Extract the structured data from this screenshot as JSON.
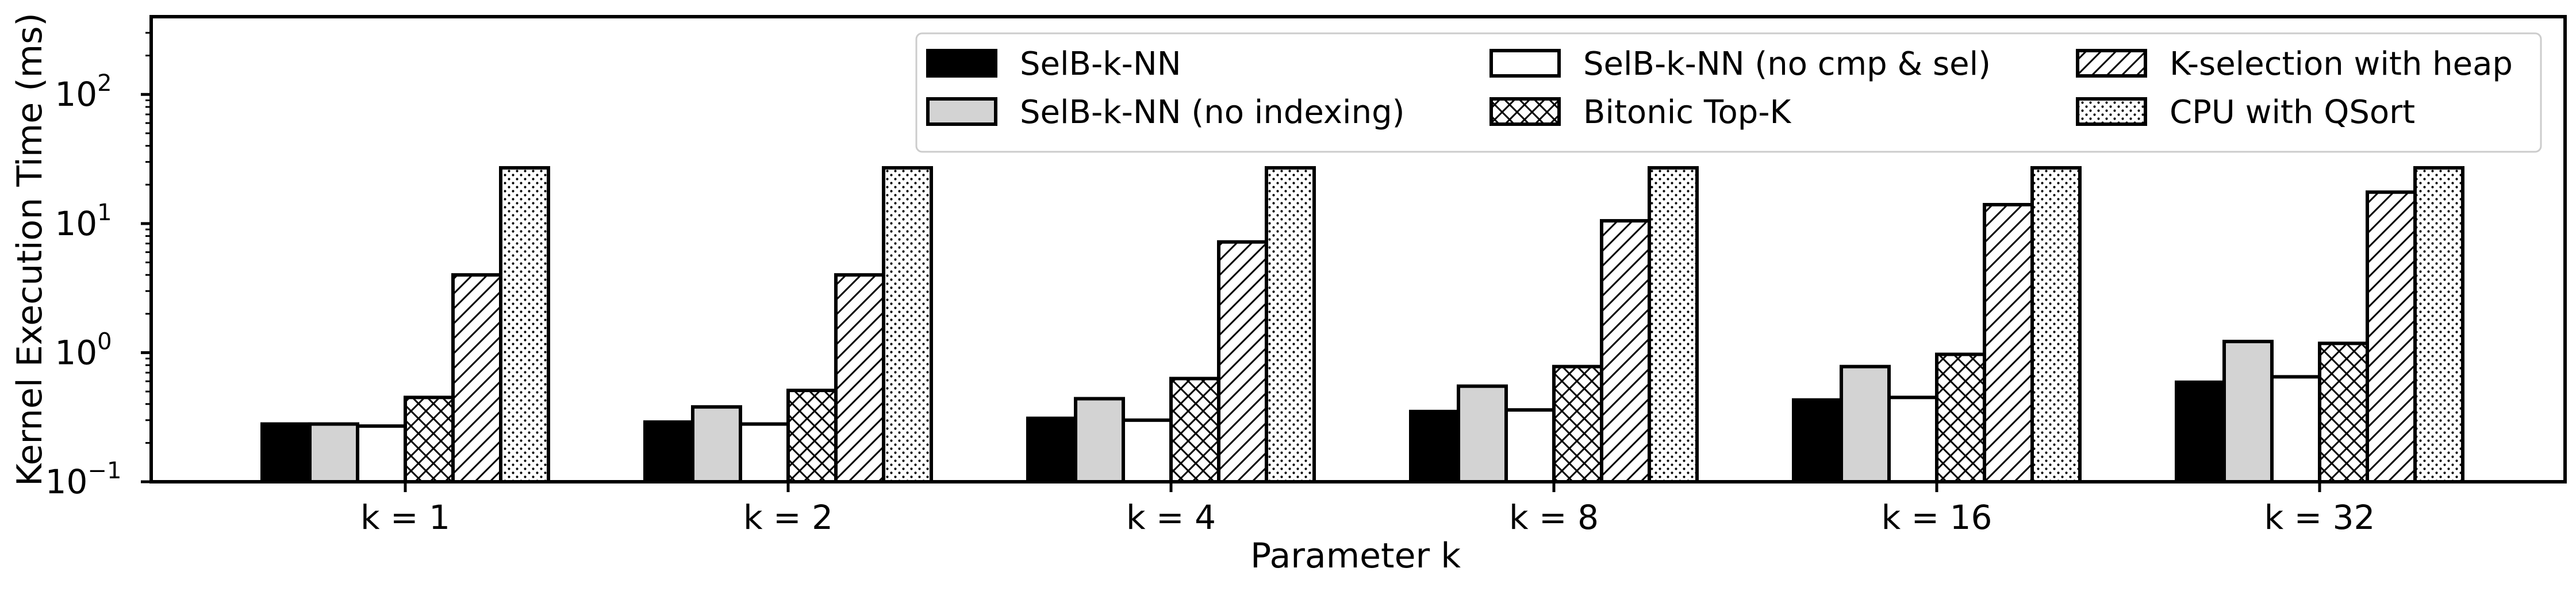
{
  "chart_data": {
    "type": "bar",
    "xlabel": "Parameter k",
    "ylabel": "Kernel Execution Time (ms)",
    "yscale": "log",
    "ylim": [
      0.1,
      400
    ],
    "yticks": [
      {
        "value": 0.1,
        "base": "10",
        "exp": "−1"
      },
      {
        "value": 1,
        "base": "10",
        "exp": "0"
      },
      {
        "value": 10,
        "base": "10",
        "exp": "1"
      },
      {
        "value": 100,
        "base": "10",
        "exp": "2"
      }
    ],
    "categories": [
      "k = 1",
      "k = 2",
      "k = 4",
      "k = 8",
      "k = 16",
      "k = 32"
    ],
    "series": [
      {
        "name": "SelB-k-NN",
        "fill": "#000000",
        "pattern": "solid",
        "values": [
          0.28,
          0.29,
          0.31,
          0.35,
          0.43,
          0.59
        ]
      },
      {
        "name": "SelB-k-NN (no indexing)",
        "fill": "#d3d3d3",
        "pattern": "solid",
        "values": [
          0.28,
          0.38,
          0.44,
          0.55,
          0.78,
          1.22
        ]
      },
      {
        "name": "SelB-k-NN (no cmp & sel)",
        "fill": "#ffffff",
        "pattern": "solid",
        "values": [
          0.27,
          0.28,
          0.3,
          0.36,
          0.45,
          0.65
        ]
      },
      {
        "name": "Bitonic Top-K",
        "fill": "#ffffff",
        "pattern": "crosshatch",
        "values": [
          0.45,
          0.51,
          0.63,
          0.78,
          0.97,
          1.18
        ]
      },
      {
        "name": "K-selection with heap",
        "fill": "#ffffff",
        "pattern": "diagonal",
        "values": [
          4.0,
          4.0,
          7.2,
          10.5,
          14.0,
          17.5
        ]
      },
      {
        "name": "CPU with QSort",
        "fill": "#ffffff",
        "pattern": "dots",
        "values": [
          27,
          27,
          27,
          27,
          27,
          27
        ]
      }
    ],
    "grid": false,
    "legend": {
      "placement": "top-right",
      "columns": 3
    }
  }
}
